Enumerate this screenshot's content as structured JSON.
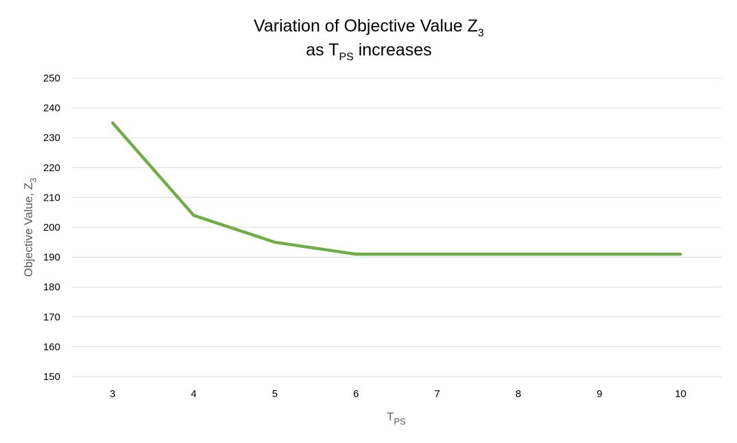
{
  "chart_data": {
    "type": "line",
    "title": {
      "line1": "Variation of Objective Value Z",
      "line1_sub": "3",
      "line2_pre": "as T",
      "line2_sub": "PS",
      "line2_post": " increases"
    },
    "xlabel": {
      "main": "T",
      "sub": "PS"
    },
    "ylabel": {
      "main": "Objective Value, Z",
      "sub": "3"
    },
    "categories": [
      "3",
      "4",
      "5",
      "6",
      "7",
      "8",
      "9",
      "10"
    ],
    "series": [
      {
        "values": [
          235,
          204,
          195,
          191,
          191,
          191,
          191,
          191
        ],
        "color": "#70ad47"
      }
    ],
    "ylim": [
      150,
      250
    ],
    "yticks": [
      "150",
      "160",
      "170",
      "180",
      "190",
      "200",
      "210",
      "220",
      "230",
      "240",
      "250"
    ],
    "grid": true,
    "legend": "none"
  }
}
